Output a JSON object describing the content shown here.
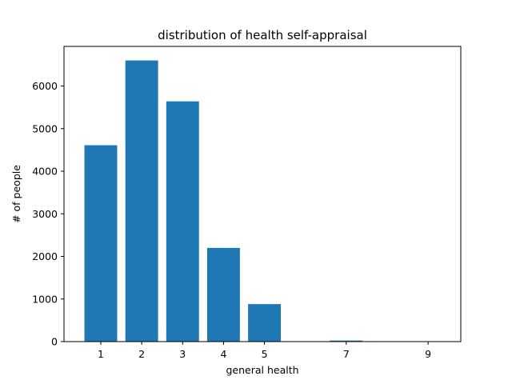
{
  "chart_data": {
    "type": "bar",
    "title": "distribution of health self-appraisal",
    "xlabel": "general health",
    "ylabel": "# of people",
    "x": [
      1,
      2,
      3,
      4,
      5,
      7,
      9
    ],
    "values": [
      4610,
      6600,
      5640,
      2200,
      880,
      25,
      8
    ],
    "xticks": [
      "1",
      "2",
      "3",
      "4",
      "5",
      "7",
      "9"
    ],
    "yticks": [
      0,
      1000,
      2000,
      3000,
      4000,
      5000,
      6000
    ],
    "xlim": [
      0.1,
      9.8
    ],
    "ylim": [
      0,
      6930
    ],
    "bar_color": "#1f77b4",
    "grid": false
  }
}
